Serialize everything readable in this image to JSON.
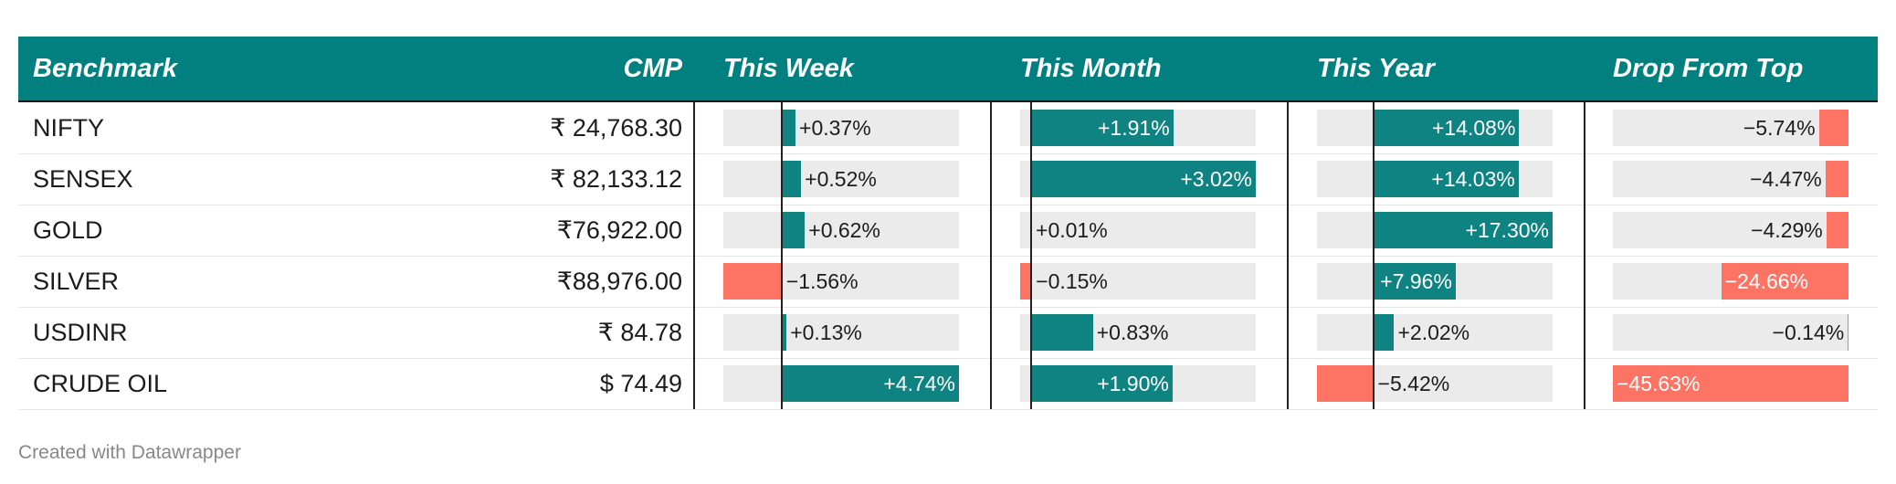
{
  "chart_data": {
    "type": "table",
    "columns": [
      "Benchmark",
      "CMP",
      "This Week",
      "This Month",
      "This Year",
      "Drop From Top"
    ],
    "rows": [
      {
        "benchmark": "NIFTY",
        "cmp": "₹ 24,768.30",
        "week": 0.37,
        "week_label": "+0.37%",
        "month": 1.91,
        "month_label": "+1.91%",
        "year": 14.08,
        "year_label": "+14.08%",
        "drop": -5.74,
        "drop_label": "−5.74%"
      },
      {
        "benchmark": "SENSEX",
        "cmp": "₹ 82,133.12",
        "week": 0.52,
        "week_label": "+0.52%",
        "month": 3.02,
        "month_label": "+3.02%",
        "year": 14.03,
        "year_label": "+14.03%",
        "drop": -4.47,
        "drop_label": "−4.47%"
      },
      {
        "benchmark": "GOLD",
        "cmp": "₹76,922.00",
        "week": 0.62,
        "week_label": "+0.62%",
        "month": 0.01,
        "month_label": "+0.01%",
        "year": 17.3,
        "year_label": "+17.30%",
        "drop": -4.29,
        "drop_label": "−4.29%"
      },
      {
        "benchmark": "SILVER",
        "cmp": "₹88,976.00",
        "week": -1.56,
        "week_label": "−1.56%",
        "month": -0.15,
        "month_label": "−0.15%",
        "year": 7.96,
        "year_label": "+7.96%",
        "drop": -24.66,
        "drop_label": "−24.66%"
      },
      {
        "benchmark": "USDINR",
        "cmp": "₹ 84.78",
        "week": 0.13,
        "week_label": "+0.13%",
        "month": 0.83,
        "month_label": "+0.83%",
        "year": 2.02,
        "year_label": "+2.02%",
        "drop": -0.14,
        "drop_label": "−0.14%"
      },
      {
        "benchmark": "CRUDE OIL",
        "cmp": "$ 74.49",
        "week": 4.74,
        "week_label": "+4.74%",
        "month": 1.9,
        "month_label": "+1.90%",
        "year": -5.42,
        "year_label": "−5.42%",
        "drop": -45.63,
        "drop_label": "−45.63%"
      }
    ],
    "bar_ranges": {
      "week": [
        -1.56,
        4.74
      ],
      "month": [
        -0.15,
        3.02
      ],
      "year": [
        -5.42,
        17.3
      ],
      "drop": [
        -45.63,
        0
      ]
    },
    "colors": {
      "header_bg": "#028080",
      "positive": "#0f8382",
      "negative": "#fd7465",
      "track": "#ebebeb"
    }
  },
  "footer": "Created with Datawrapper"
}
